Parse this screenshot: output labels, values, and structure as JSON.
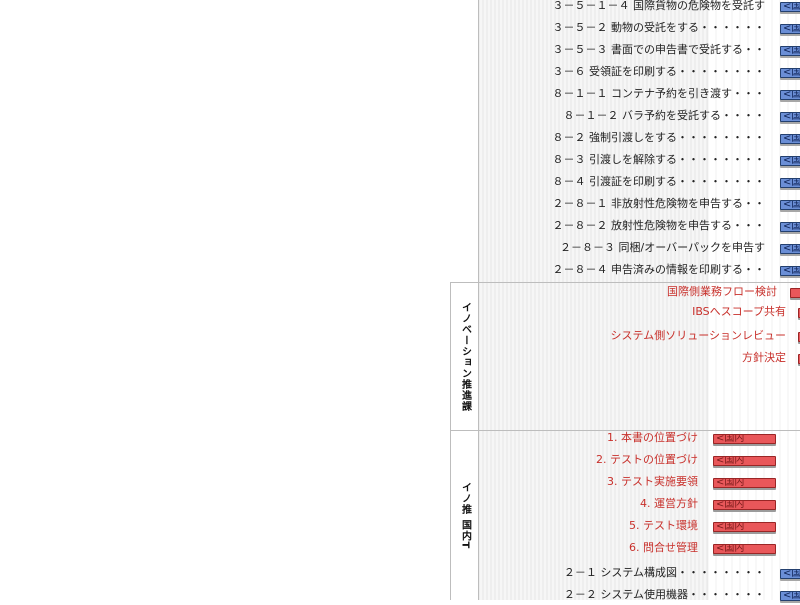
{
  "lanes": [
    {
      "label": "イノベーション推進課",
      "top": 283,
      "height": 147
    },
    {
      "label": "イノ推 国内T",
      "top": 431,
      "height": 169
    }
  ],
  "tasks": [
    {
      "text": "３－５－１－４ 国際貨物の危険物を受託す",
      "style": "normal",
      "bar": "blue",
      "barLabel": "<国"
    },
    {
      "text": "３－５－２ 動物の受託をする・・・・・・",
      "style": "normal",
      "bar": "blue",
      "barLabel": "<国"
    },
    {
      "text": "３－５－３ 書面での申告書で受託する・・",
      "style": "normal",
      "bar": "blue",
      "barLabel": "<国"
    },
    {
      "text": "３－６ 受領証を印刷する・・・・・・・・",
      "style": "normal",
      "bar": "blue",
      "barLabel": "<国"
    },
    {
      "text": "８－１－１ コンテナ予約を引き渡す・・・",
      "style": "normal",
      "bar": "blue",
      "barLabel": "<国"
    },
    {
      "text": "８－１－２ バラ予約を受託する・・・・",
      "style": "normal",
      "bar": "blue",
      "barLabel": "<国"
    },
    {
      "text": "８－２ 強制引渡しをする・・・・・・・・",
      "style": "normal",
      "bar": "blue",
      "barLabel": "<国"
    },
    {
      "text": "８－３ 引渡しを解除する・・・・・・・・",
      "style": "normal",
      "bar": "blue",
      "barLabel": "<国"
    },
    {
      "text": "８－４ 引渡証を印刷する・・・・・・・・",
      "style": "normal",
      "bar": "blue",
      "barLabel": "<国"
    },
    {
      "text": "２－８－１ 非放射性危険物を申告する・・",
      "style": "normal",
      "bar": "blue",
      "barLabel": "<国"
    },
    {
      "text": "２－８－２ 放射性危険物を申告する・・・",
      "style": "normal",
      "bar": "blue",
      "barLabel": "<国"
    },
    {
      "text": "２－８－３ 同梱/オーバーパックを申告す",
      "style": "normal",
      "bar": "blue",
      "barLabel": "<国"
    },
    {
      "text": "２－８－４ 申告済みの情報を印刷する・・",
      "style": "normal",
      "bar": "blue",
      "barLabel": "<国"
    },
    {
      "text": "国際側業務フロー検討",
      "style": "red",
      "bar": "red-short",
      "barLabel": ""
    },
    {
      "text": "IBSへスコープ共有",
      "style": "red",
      "bar": "red-tick",
      "barLabel": ""
    },
    {
      "text": "システム側ソリューションレビュー",
      "style": "red",
      "bar": "red-tick",
      "barLabel": ""
    },
    {
      "text": "方針決定",
      "style": "red",
      "bar": "red-tick",
      "barLabel": ""
    },
    {
      "text": "1. 本書の位置づけ",
      "style": "red",
      "bar": "red",
      "barLabel": "<国内"
    },
    {
      "text": "2. テストの位置づけ",
      "style": "red",
      "bar": "red",
      "barLabel": "<国内"
    },
    {
      "text": "3. テスト実施要領",
      "style": "red",
      "bar": "red",
      "barLabel": "<国内"
    },
    {
      "text": "4. 運営方針",
      "style": "red",
      "bar": "red",
      "barLabel": "<国内"
    },
    {
      "text": "5. テスト環境",
      "style": "red",
      "bar": "red",
      "barLabel": "<国内"
    },
    {
      "text": "6. 問合せ管理",
      "style": "red",
      "bar": "red",
      "barLabel": "<国内"
    },
    {
      "text": "２－１ システム構成図・・・・・・・・",
      "style": "normal",
      "bar": "blue",
      "barLabel": "<国"
    },
    {
      "text": "２－２ システム使用機器・・・・・・・",
      "style": "normal",
      "bar": "blue",
      "barLabel": "<国"
    }
  ],
  "colors": {
    "blueBar": "#6a8ed6",
    "redBar": "#e9575a",
    "redText": "#c8302b",
    "grid": "#e6e6e6",
    "laneLine": "#bdbdbd"
  }
}
